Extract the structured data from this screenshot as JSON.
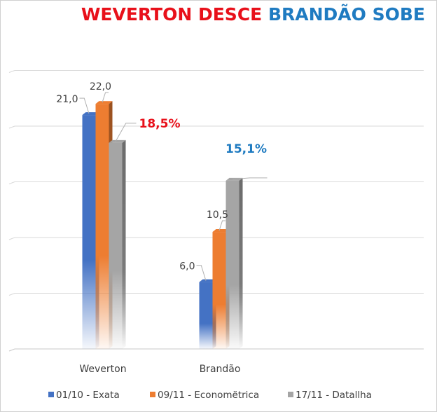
{
  "title": {
    "part1": "WEVERTON DESCE",
    "part2": "BRANDÃO SOBE",
    "color1": "#e8101a",
    "color2": "#1f7bc1"
  },
  "chart_data": {
    "type": "bar",
    "categories": [
      "Weverton",
      "Brandão"
    ],
    "series": [
      {
        "name": "01/10 - Exata",
        "values": [
          21.0,
          6.0
        ],
        "labels": [
          "21,0",
          "6,0"
        ],
        "color": "#4472c4"
      },
      {
        "name": "09/11 - Economëtrica",
        "values": [
          22.0,
          10.5
        ],
        "labels": [
          "22,0",
          "10,5"
        ],
        "color": "#ed7d31"
      },
      {
        "name": "17/11 - Datallha",
        "values": [
          18.5,
          15.1
        ],
        "labels": [
          "18,5%",
          "15,1%"
        ],
        "color": "#a5a5a5"
      }
    ],
    "highlight_label_colors": [
      "#e8101a",
      "#1f7bc1"
    ],
    "ylim": [
      0,
      25
    ],
    "grid": true,
    "legend": "bottom"
  }
}
